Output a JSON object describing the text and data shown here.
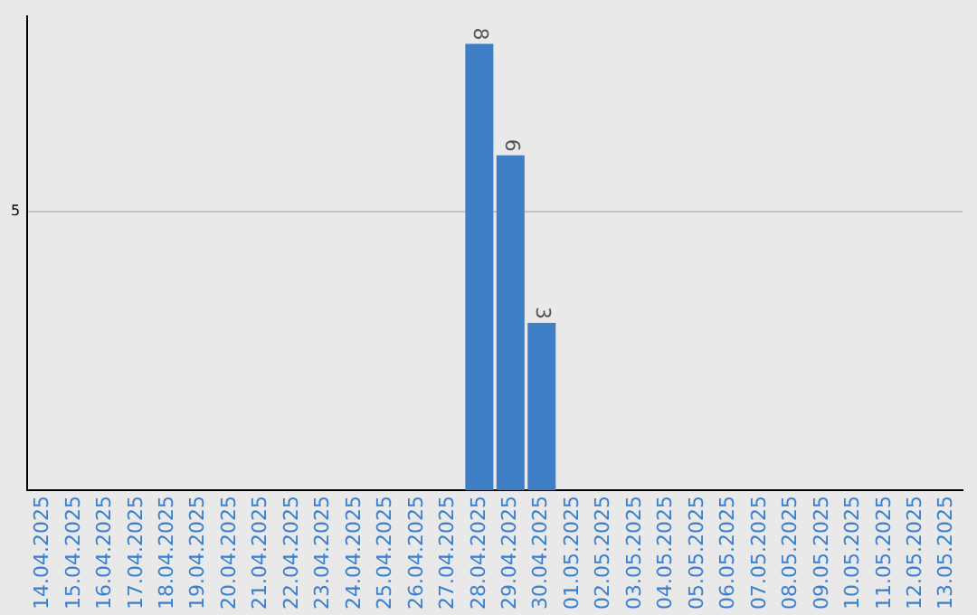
{
  "chart_data": {
    "type": "bar",
    "categories": [
      "14.04.2025",
      "15.04.2025",
      "16.04.2025",
      "17.04.2025",
      "18.04.2025",
      "19.04.2025",
      "20.04.2025",
      "21.04.2025",
      "22.04.2025",
      "23.04.2025",
      "24.04.2025",
      "25.04.2025",
      "26.04.2025",
      "27.04.2025",
      "28.04.2025",
      "29.04.2025",
      "30.04.2025",
      "01.05.2025",
      "02.05.2025",
      "03.05.2025",
      "04.05.2025",
      "05.05.2025",
      "06.05.2025",
      "07.05.2025",
      "08.05.2025",
      "09.05.2025",
      "10.05.2025",
      "11.05.2025",
      "12.05.2025",
      "13.05.2025"
    ],
    "values": [
      null,
      null,
      null,
      null,
      null,
      null,
      null,
      null,
      null,
      null,
      null,
      null,
      null,
      null,
      8,
      6,
      3,
      null,
      null,
      null,
      null,
      null,
      null,
      null,
      null,
      null,
      null,
      null,
      null,
      null
    ],
    "color": "#3d7ec6",
    "ylim": [
      0,
      8.5
    ],
    "yticks": [
      5
    ],
    "grid": "y",
    "data_labels": true,
    "legend": false
  }
}
